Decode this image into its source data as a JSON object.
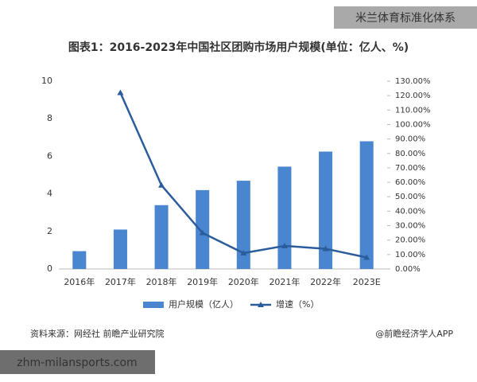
{
  "chart_data": {
    "type": "bar-line",
    "title": "图表1：2016-2023年中国社区团购市场用户规模(单位：亿人、%)",
    "categories": [
      "2016年",
      "2017年",
      "2018年",
      "2019年",
      "2020年",
      "2021年",
      "2022年",
      "2023E"
    ],
    "series": [
      {
        "name": "用户规模（亿人）",
        "type": "bar",
        "color": "#4a86d0",
        "values": [
          0.95,
          2.1,
          3.4,
          4.2,
          4.7,
          5.45,
          6.25,
          6.8
        ]
      },
      {
        "name": "增速（%）",
        "type": "line",
        "axis": "y2",
        "color": "#2b5d9c",
        "values": [
          null,
          122,
          58,
          25,
          11,
          16,
          14,
          8
        ]
      }
    ],
    "ylim": [
      0,
      10
    ],
    "yticks": [
      0,
      2,
      4,
      6,
      8,
      10
    ],
    "y2lim": [
      0,
      130
    ],
    "y2ticks": [
      {
        "value": 0,
        "label": "0.00%"
      },
      {
        "value": 10,
        "label": "10.00%"
      },
      {
        "value": 20,
        "label": "20.00%"
      },
      {
        "value": 30,
        "label": "30.00%"
      },
      {
        "value": 40,
        "label": "40.00%"
      },
      {
        "value": 50,
        "label": "50.00%"
      },
      {
        "value": 60,
        "label": "60.00%"
      },
      {
        "value": 70,
        "label": "70.00%"
      },
      {
        "value": 80,
        "label": "80.00%"
      },
      {
        "value": 90,
        "label": "90.00%"
      },
      {
        "value": 100,
        "label": "100.00%"
      },
      {
        "value": 110,
        "label": "110.00%"
      },
      {
        "value": 120,
        "label": "120.00%"
      },
      {
        "value": 130,
        "label": "130.00%"
      }
    ],
    "grid": false,
    "legend": "bottom",
    "source": "资料来源：网经社 前瞻产业研究院",
    "credit": "@前瞻经济学人APP"
  },
  "watermark_top": "米兰体育标准化体系",
  "watermark_bottom": "zhm-milansports.com"
}
